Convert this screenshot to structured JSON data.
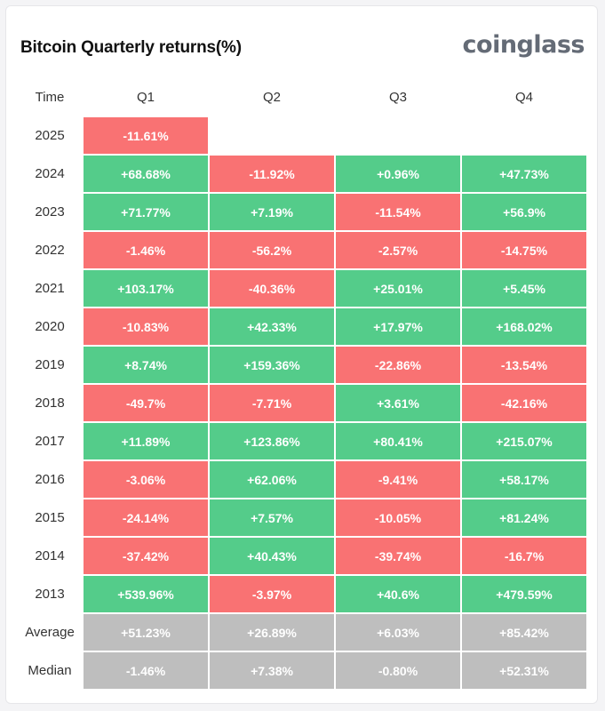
{
  "title": "Bitcoin Quarterly returns(%)",
  "brand": "coinglass",
  "colors": {
    "positive": "#54cc8a",
    "negative": "#f97273",
    "summary": "#bebebe"
  },
  "chart_data": {
    "type": "table",
    "corner_label": "Time",
    "columns": [
      "Q1",
      "Q2",
      "Q3",
      "Q4"
    ],
    "rows": [
      {
        "label": "2025",
        "cells": [
          {
            "text": "-11.61%",
            "value": -11.61
          },
          null,
          null,
          null
        ]
      },
      {
        "label": "2024",
        "cells": [
          {
            "text": "+68.68%",
            "value": 68.68
          },
          {
            "text": "-11.92%",
            "value": -11.92
          },
          {
            "text": "+0.96%",
            "value": 0.96
          },
          {
            "text": "+47.73%",
            "value": 47.73
          }
        ]
      },
      {
        "label": "2023",
        "cells": [
          {
            "text": "+71.77%",
            "value": 71.77
          },
          {
            "text": "+7.19%",
            "value": 7.19
          },
          {
            "text": "-11.54%",
            "value": -11.54
          },
          {
            "text": "+56.9%",
            "value": 56.9
          }
        ]
      },
      {
        "label": "2022",
        "cells": [
          {
            "text": "-1.46%",
            "value": -1.46
          },
          {
            "text": "-56.2%",
            "value": -56.2
          },
          {
            "text": "-2.57%",
            "value": -2.57
          },
          {
            "text": "-14.75%",
            "value": -14.75
          }
        ]
      },
      {
        "label": "2021",
        "cells": [
          {
            "text": "+103.17%",
            "value": 103.17
          },
          {
            "text": "-40.36%",
            "value": -40.36
          },
          {
            "text": "+25.01%",
            "value": 25.01
          },
          {
            "text": "+5.45%",
            "value": 5.45
          }
        ]
      },
      {
        "label": "2020",
        "cells": [
          {
            "text": "-10.83%",
            "value": -10.83
          },
          {
            "text": "+42.33%",
            "value": 42.33
          },
          {
            "text": "+17.97%",
            "value": 17.97
          },
          {
            "text": "+168.02%",
            "value": 168.02
          }
        ]
      },
      {
        "label": "2019",
        "cells": [
          {
            "text": "+8.74%",
            "value": 8.74
          },
          {
            "text": "+159.36%",
            "value": 159.36
          },
          {
            "text": "-22.86%",
            "value": -22.86
          },
          {
            "text": "-13.54%",
            "value": -13.54
          }
        ]
      },
      {
        "label": "2018",
        "cells": [
          {
            "text": "-49.7%",
            "value": -49.7
          },
          {
            "text": "-7.71%",
            "value": -7.71
          },
          {
            "text": "+3.61%",
            "value": 3.61
          },
          {
            "text": "-42.16%",
            "value": -42.16
          }
        ]
      },
      {
        "label": "2017",
        "cells": [
          {
            "text": "+11.89%",
            "value": 11.89
          },
          {
            "text": "+123.86%",
            "value": 123.86
          },
          {
            "text": "+80.41%",
            "value": 80.41
          },
          {
            "text": "+215.07%",
            "value": 215.07
          }
        ]
      },
      {
        "label": "2016",
        "cells": [
          {
            "text": "-3.06%",
            "value": -3.06
          },
          {
            "text": "+62.06%",
            "value": 62.06
          },
          {
            "text": "-9.41%",
            "value": -9.41
          },
          {
            "text": "+58.17%",
            "value": 58.17
          }
        ]
      },
      {
        "label": "2015",
        "cells": [
          {
            "text": "-24.14%",
            "value": -24.14
          },
          {
            "text": "+7.57%",
            "value": 7.57
          },
          {
            "text": "-10.05%",
            "value": -10.05
          },
          {
            "text": "+81.24%",
            "value": 81.24
          }
        ]
      },
      {
        "label": "2014",
        "cells": [
          {
            "text": "-37.42%",
            "value": -37.42
          },
          {
            "text": "+40.43%",
            "value": 40.43
          },
          {
            "text": "-39.74%",
            "value": -39.74
          },
          {
            "text": "-16.7%",
            "value": -16.7
          }
        ]
      },
      {
        "label": "2013",
        "cells": [
          {
            "text": "+539.96%",
            "value": 539.96
          },
          {
            "text": "-3.97%",
            "value": -3.97
          },
          {
            "text": "+40.6%",
            "value": 40.6
          },
          {
            "text": "+479.59%",
            "value": 479.59
          }
        ]
      },
      {
        "label": "Average",
        "summary": true,
        "cells": [
          {
            "text": "+51.23%",
            "value": 51.23
          },
          {
            "text": "+26.89%",
            "value": 26.89
          },
          {
            "text": "+6.03%",
            "value": 6.03
          },
          {
            "text": "+85.42%",
            "value": 85.42
          }
        ]
      },
      {
        "label": "Median",
        "summary": true,
        "cells": [
          {
            "text": "-1.46%",
            "value": -1.46
          },
          {
            "text": "+7.38%",
            "value": 7.38
          },
          {
            "text": "-0.80%",
            "value": -0.8
          },
          {
            "text": "+52.31%",
            "value": 52.31
          }
        ]
      }
    ]
  }
}
